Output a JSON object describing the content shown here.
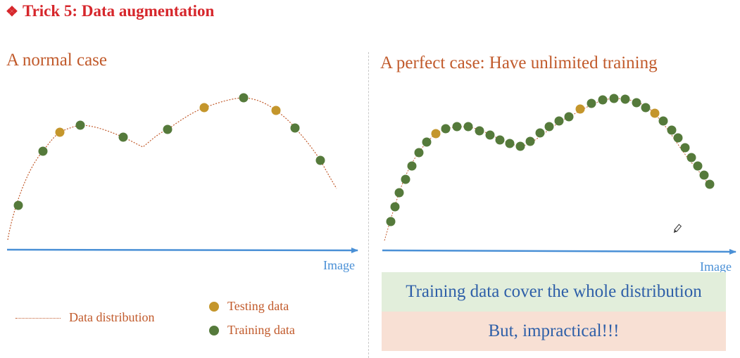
{
  "title": {
    "bullet": "❖",
    "text": "Trick 5: Data augmentation"
  },
  "left_panel": {
    "heading": "A normal case",
    "axis_label": "Image",
    "legend": {
      "distribution": "Data distribution",
      "testing": "Testing data",
      "training": "Training data"
    }
  },
  "right_panel": {
    "heading": "A perfect case: Have unlimited training",
    "axis_label": "Image",
    "box_top": "Training data cover the whole distribution",
    "box_bottom": "But, impractical!!!"
  },
  "colors": {
    "title": "#d6262b",
    "heading": "#c15a2b",
    "axis": "#4a90d6",
    "testing": "#c4962c",
    "training": "#557a3b",
    "curve": "#c15a2b",
    "box_top_bg": "#e2eedb",
    "box_bottom_bg": "#f8e0d4",
    "box_text": "#2e5fa8"
  },
  "icons": {
    "title_bullet": "diamond-bullet-icon",
    "cursor": "pen-cursor-icon"
  }
}
